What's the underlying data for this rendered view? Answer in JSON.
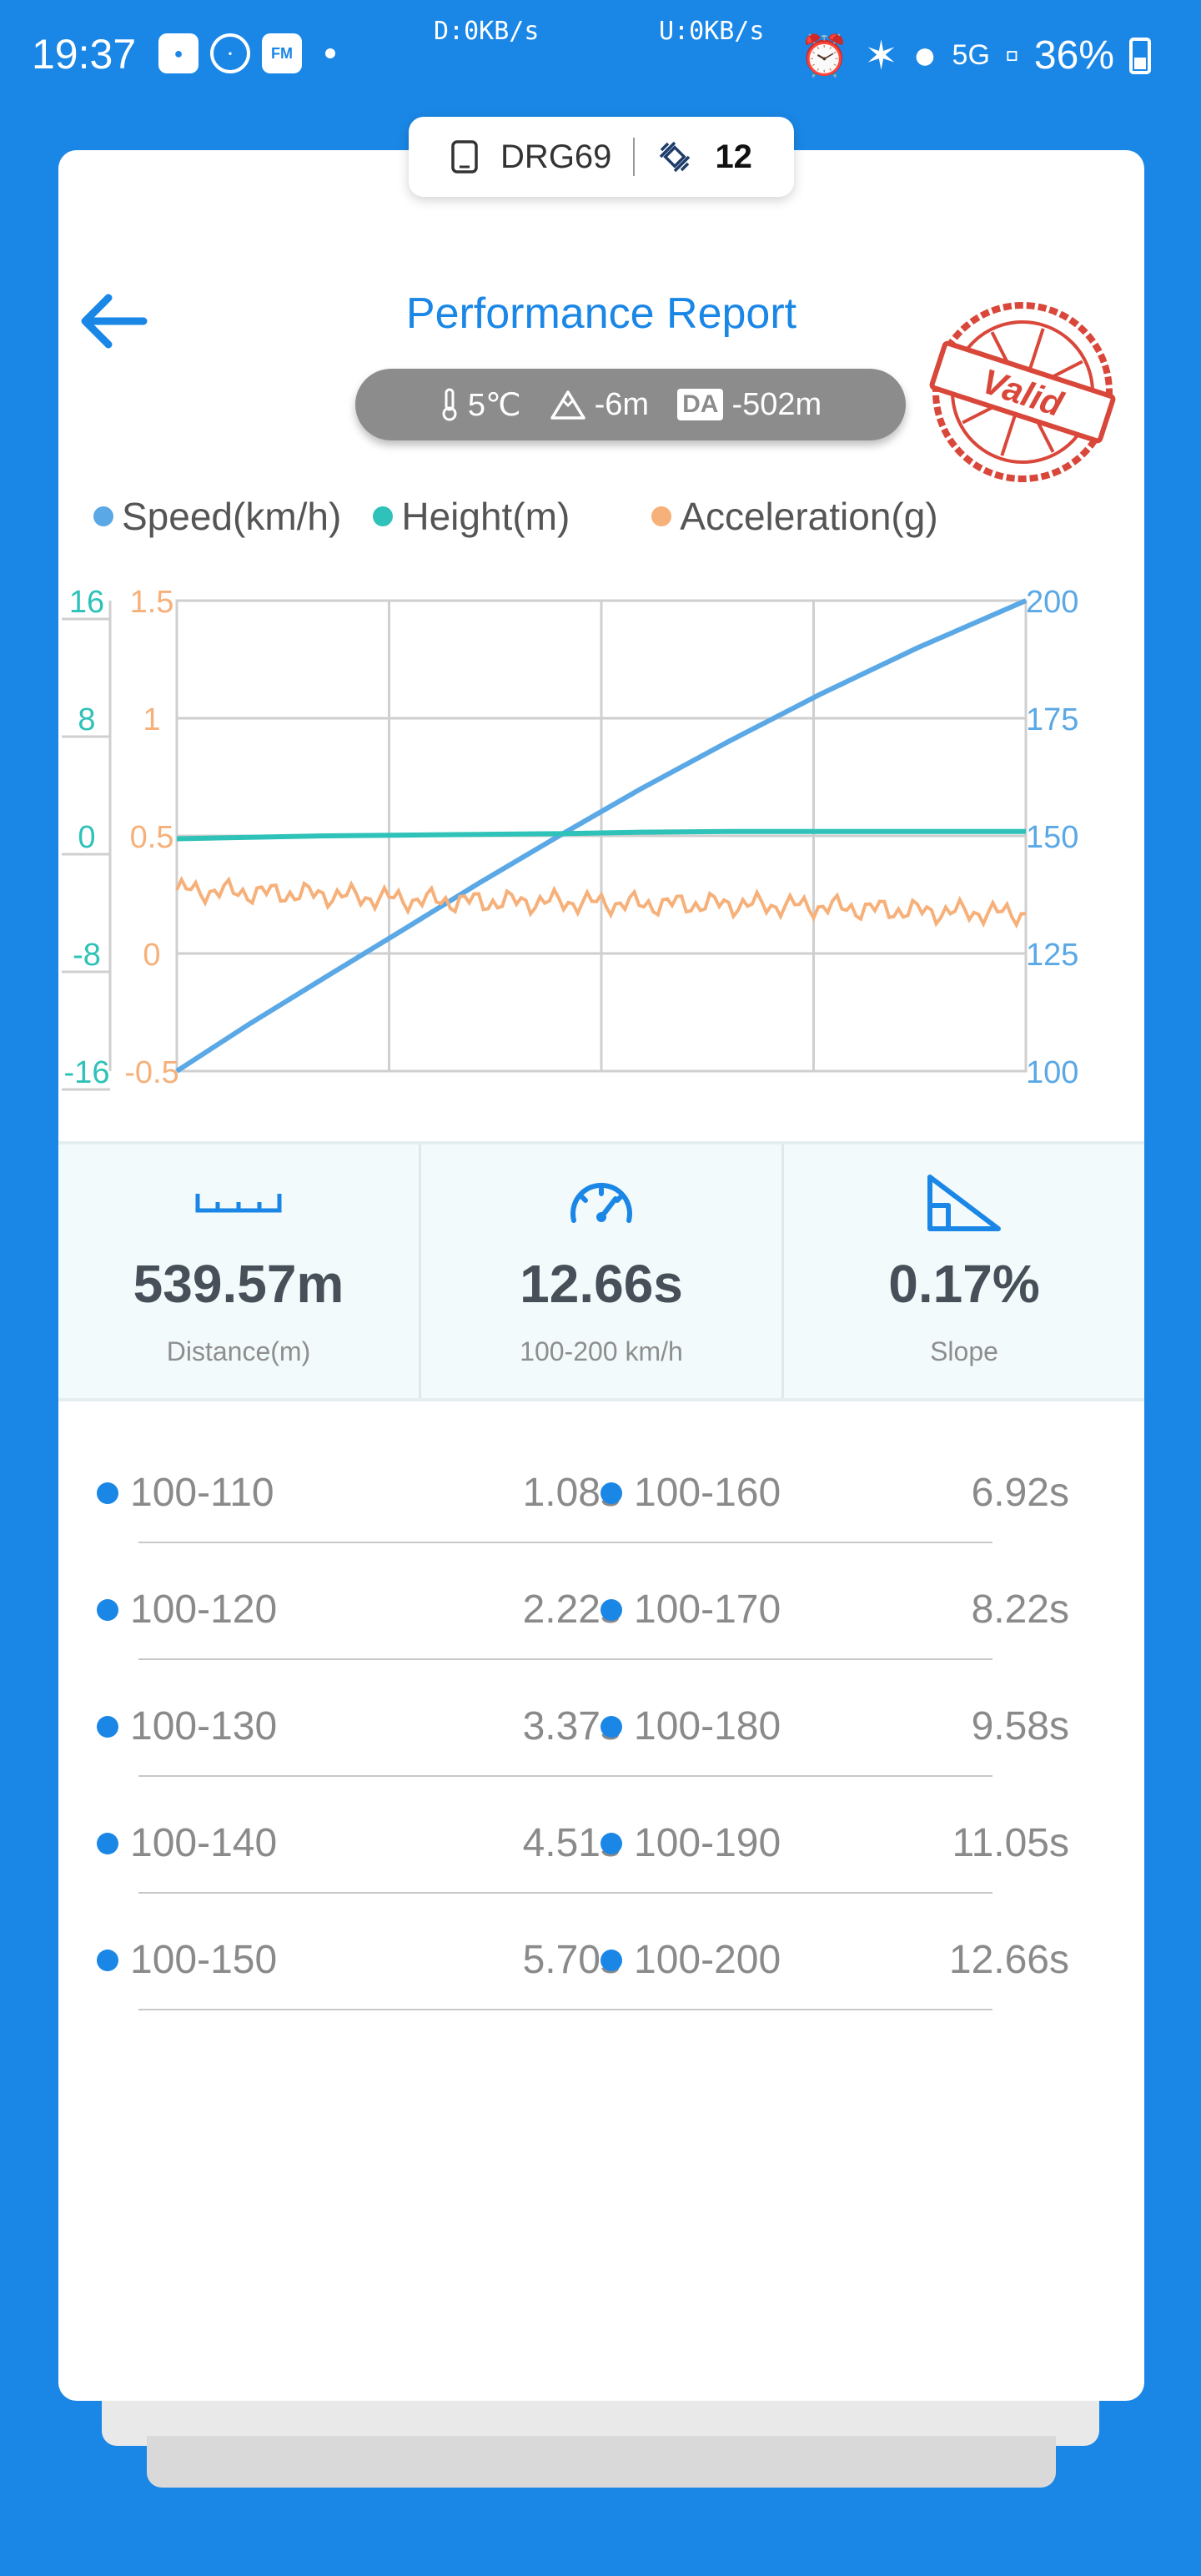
{
  "status_bar": {
    "time": "19:37",
    "download": "D:0KB/s",
    "upload": "U:0KB/s",
    "battery": "36%",
    "network": "5G",
    "app_icons": [
      "map-pin-app-icon",
      "circle-app-icon",
      "fm-app-icon"
    ],
    "fm_label": "FM"
  },
  "device": {
    "name": "DRG69",
    "satellites": "12"
  },
  "header": {
    "title": "Performance Report",
    "stamp": "Valid"
  },
  "environment": {
    "temperature": "5℃",
    "altitude": "-6m",
    "da_label": "DA",
    "density_altitude": "-502m"
  },
  "legend": [
    {
      "label": "Speed(km/h)",
      "color": "#5aa8e6"
    },
    {
      "label": "Height(m)",
      "color": "#2ec2b8"
    },
    {
      "label": "Acceleration(g)",
      "color": "#f6b07a"
    }
  ],
  "chart_data": {
    "type": "line",
    "x": [
      0,
      1.08,
      2.22,
      3.37,
      4.51,
      5.7,
      6.92,
      8.22,
      9.58,
      11.05,
      12.66
    ],
    "series": [
      {
        "name": "Speed(km/h)",
        "axis": "right",
        "color": "#5aa8e6",
        "values": [
          100,
          110,
          120,
          130,
          140,
          150,
          160,
          170,
          180,
          190,
          200
        ]
      },
      {
        "name": "Height(m)",
        "axis": "left-outer",
        "color": "#2ec2b8",
        "values": [
          -0.2,
          -0.1,
          0.0,
          0.05,
          0.1,
          0.15,
          0.25,
          0.3,
          0.3,
          0.3,
          0.3
        ]
      },
      {
        "name": "Acceleration(g)",
        "axis": "left-inner",
        "color": "#f6b07a",
        "values": [
          0.27,
          0.26,
          0.25,
          0.23,
          0.22,
          0.22,
          0.21,
          0.21,
          0.2,
          0.18,
          0.17
        ]
      }
    ],
    "axes": {
      "left_outer": {
        "ticks": [
          "16",
          "8",
          "0",
          "-8",
          "-16"
        ],
        "ylim": [
          -16,
          16
        ],
        "color": "#2ec2b8"
      },
      "left_inner": {
        "ticks": [
          "1.5",
          "1",
          "0.5",
          "0",
          "-0.5"
        ],
        "ylim": [
          -0.5,
          1.5
        ],
        "color": "#f6b07a"
      },
      "right": {
        "ticks": [
          "200",
          "175",
          "150",
          "125",
          "100"
        ],
        "ylim": [
          100,
          200
        ],
        "color": "#5aa8e6"
      }
    },
    "grid": true
  },
  "stats": [
    {
      "icon": "ruler-icon",
      "value": "539.57m",
      "label": "Distance(m)"
    },
    {
      "icon": "speedometer-icon",
      "value": "12.66s",
      "label": "100-200 km/h"
    },
    {
      "icon": "slope-icon",
      "value": "0.17%",
      "label": "Slope"
    }
  ],
  "splits": [
    [
      {
        "range": "100-110",
        "time": "1.08s"
      },
      {
        "range": "100-160",
        "time": "6.92s"
      }
    ],
    [
      {
        "range": "100-120",
        "time": "2.22s"
      },
      {
        "range": "100-170",
        "time": "8.22s"
      }
    ],
    [
      {
        "range": "100-130",
        "time": "3.37s"
      },
      {
        "range": "100-180",
        "time": "9.58s"
      }
    ],
    [
      {
        "range": "100-140",
        "time": "4.51s"
      },
      {
        "range": "100-190",
        "time": "11.05s"
      }
    ],
    [
      {
        "range": "100-150",
        "time": "5.70s"
      },
      {
        "range": "100-200",
        "time": "12.66s"
      }
    ]
  ]
}
